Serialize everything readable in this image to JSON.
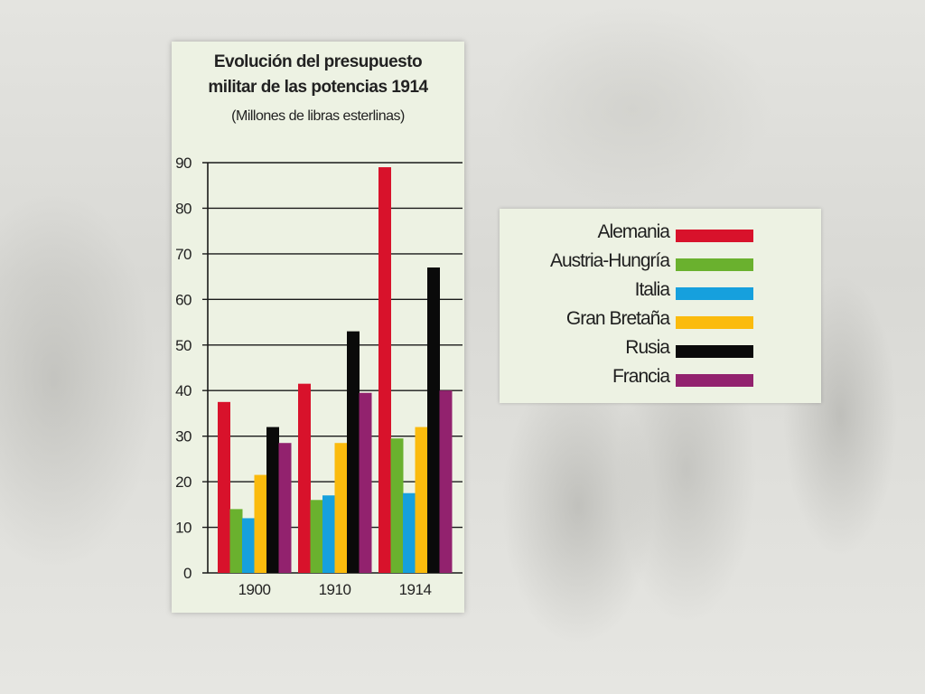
{
  "chart_data": {
    "type": "bar",
    "title_lines": [
      "Evolución del presupuesto",
      "militar de las potencias 1914"
    ],
    "subtitle": "(Millones de libras esterlinas)",
    "categories": [
      "1900",
      "1910",
      "1914"
    ],
    "ylim": [
      0,
      90
    ],
    "yticks": [
      0,
      10,
      20,
      30,
      40,
      50,
      60,
      70,
      80,
      90
    ],
    "grid": true,
    "legend_position": "right",
    "series": [
      {
        "name": "Alemania",
        "color": "#d8122b",
        "values": [
          37.5,
          41.5,
          89
        ]
      },
      {
        "name": "Austria-Hungría",
        "color": "#6ab12e",
        "values": [
          14,
          16,
          29.5
        ]
      },
      {
        "name": "Italia",
        "color": "#16a0dd",
        "values": [
          12,
          17,
          17.5
        ]
      },
      {
        "name": "Gran Bretaña",
        "color": "#fbbb0d",
        "values": [
          21.5,
          28.5,
          32
        ]
      },
      {
        "name": "Rusia",
        "color": "#0a0a0a",
        "values": [
          32,
          53,
          67
        ]
      },
      {
        "name": "Francia",
        "color": "#92226e",
        "values": [
          28.5,
          39.5,
          40
        ]
      }
    ]
  }
}
